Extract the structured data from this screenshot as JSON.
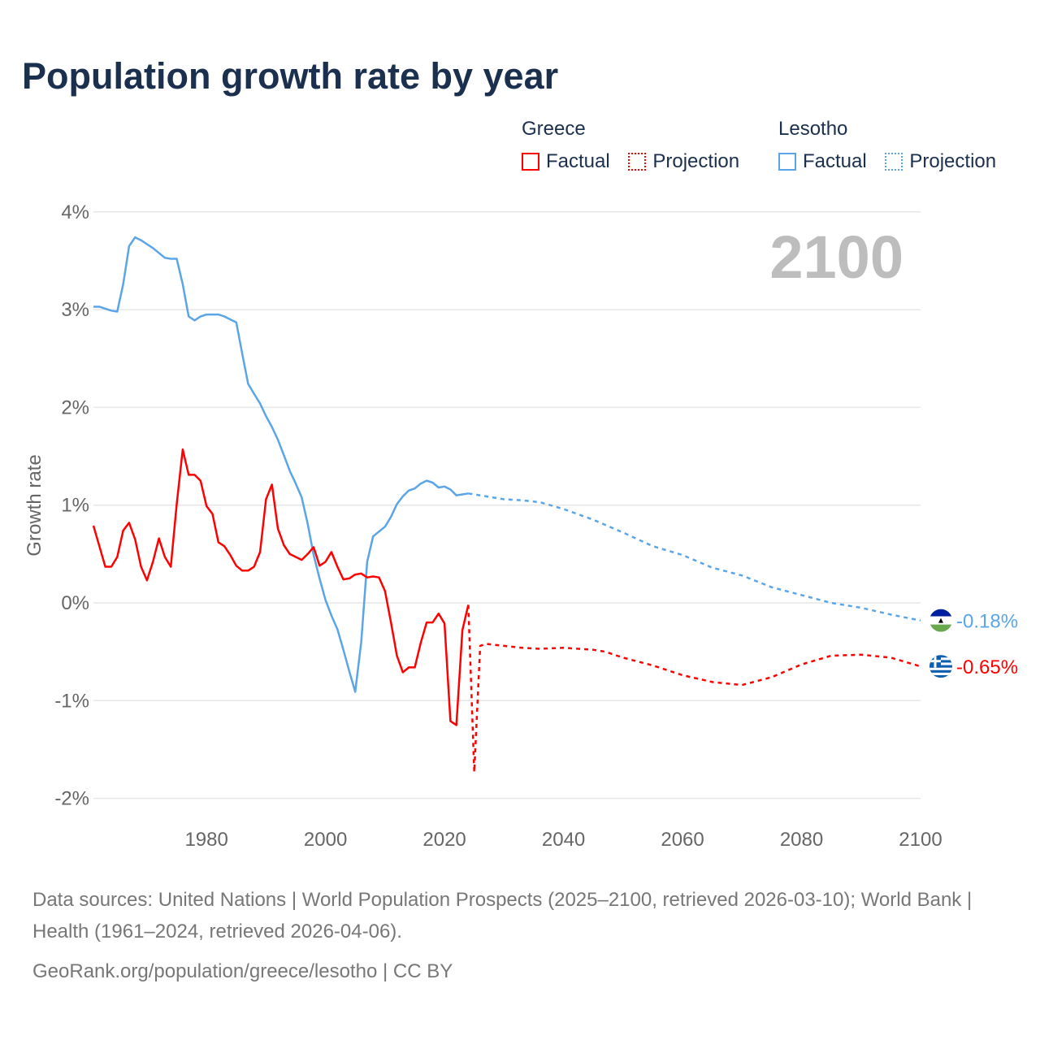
{
  "title": "Population growth rate by year",
  "legend": [
    {
      "name": "Greece",
      "color": "#ff0000",
      "factual_label": "Factual",
      "projection_label": "Projection"
    },
    {
      "name": "Lesotho",
      "color": "#5aa5e8",
      "factual_label": "Factual",
      "projection_label": "Projection"
    }
  ],
  "footer": {
    "sources": "Data sources: United Nations | World Population Prospects (2025–2100, retrieved 2026-03-10); World Bank | Health (1961–2024, retrieved 2026-04-06).",
    "credit": "GeoRank.org/population/greece/lesotho | CC BY"
  },
  "chart_data": {
    "type": "line",
    "title": "Population growth rate by year",
    "xlabel": "",
    "ylabel": "Growth rate",
    "xlim": [
      1961,
      2100
    ],
    "ylim": [
      -2.2,
      4.1
    ],
    "x_ticks": [
      1980,
      2000,
      2020,
      2040,
      2060,
      2080,
      2100
    ],
    "x_tick_labels": [
      "1980",
      "2000",
      "2020",
      "2040",
      "2060",
      "2080",
      "2100"
    ],
    "y_ticks": [
      4,
      3,
      2,
      1,
      0,
      -1,
      -2
    ],
    "y_tick_labels": [
      "4%",
      "3%",
      "2%",
      "1%",
      "0%",
      "-1%",
      "-2%"
    ],
    "grid": true,
    "legend_position": "top-right",
    "year_annotation": "2100",
    "end_labels": {
      "Lesotho": "-0.18%",
      "Greece": "-0.65%"
    },
    "series": [
      {
        "name": "Lesotho",
        "kind": "Factual",
        "color": "#5aa5e8",
        "x": [
          1961,
          1962,
          1963,
          1964,
          1965,
          1966,
          1967,
          1968,
          1969,
          1970,
          1971,
          1972,
          1973,
          1974,
          1975,
          1976,
          1977,
          1978,
          1979,
          1980,
          1981,
          1982,
          1983,
          1984,
          1985,
          1986,
          1987,
          1988,
          1989,
          1990,
          1991,
          1992,
          1993,
          1994,
          1995,
          1996,
          1997,
          1998,
          1999,
          2000,
          2001,
          2002,
          2003,
          2004,
          2005,
          2006,
          2007,
          2008,
          2009,
          2010,
          2011,
          2012,
          2013,
          2014,
          2015,
          2016,
          2017,
          2018,
          2019,
          2020,
          2021,
          2022,
          2023,
          2024
        ],
        "y": [
          3.03,
          3.03,
          3.01,
          2.99,
          2.98,
          3.26,
          3.65,
          3.74,
          3.71,
          3.67,
          3.63,
          3.58,
          3.53,
          3.52,
          3.52,
          3.26,
          2.93,
          2.89,
          2.93,
          2.95,
          2.95,
          2.95,
          2.93,
          2.9,
          2.87,
          2.55,
          2.24,
          2.14,
          2.04,
          1.91,
          1.8,
          1.67,
          1.51,
          1.35,
          1.22,
          1.08,
          0.81,
          0.49,
          0.25,
          0.03,
          -0.13,
          -0.27,
          -0.48,
          -0.7,
          -0.91,
          -0.4,
          0.42,
          0.68,
          0.73,
          0.78,
          0.88,
          1.01,
          1.09,
          1.15,
          1.17,
          1.22,
          1.25,
          1.23,
          1.18,
          1.19,
          1.16,
          1.1,
          1.11,
          1.12
        ]
      },
      {
        "name": "Lesotho",
        "kind": "Projection",
        "color": "#5aa5e8",
        "x": [
          2024,
          2027,
          2030,
          2033,
          2036,
          2040,
          2045,
          2050,
          2055,
          2060,
          2065,
          2070,
          2075,
          2080,
          2085,
          2090,
          2095,
          2100
        ],
        "y": [
          1.12,
          1.09,
          1.06,
          1.05,
          1.03,
          0.96,
          0.85,
          0.72,
          0.58,
          0.49,
          0.36,
          0.28,
          0.16,
          0.08,
          0.0,
          -0.05,
          -0.12,
          -0.18
        ]
      },
      {
        "name": "Greece",
        "kind": "Factual",
        "color": "#ff0000",
        "x": [
          1961,
          1962,
          1963,
          1964,
          1965,
          1966,
          1967,
          1968,
          1969,
          1970,
          1971,
          1972,
          1973,
          1974,
          1975,
          1976,
          1977,
          1978,
          1979,
          1980,
          1981,
          1982,
          1983,
          1984,
          1985,
          1986,
          1987,
          1988,
          1989,
          1990,
          1991,
          1992,
          1993,
          1994,
          1995,
          1996,
          1997,
          1998,
          1999,
          2000,
          2001,
          2002,
          2003,
          2004,
          2005,
          2006,
          2007,
          2008,
          2009,
          2010,
          2011,
          2012,
          2013,
          2014,
          2015,
          2016,
          2017,
          2018,
          2019,
          2020,
          2021,
          2022,
          2023,
          2024
        ],
        "y": [
          0.79,
          0.58,
          0.37,
          0.37,
          0.47,
          0.74,
          0.82,
          0.65,
          0.37,
          0.23,
          0.42,
          0.66,
          0.47,
          0.37,
          1.01,
          1.57,
          1.31,
          1.31,
          1.25,
          0.99,
          0.91,
          0.62,
          0.58,
          0.49,
          0.38,
          0.33,
          0.33,
          0.37,
          0.52,
          1.06,
          1.21,
          0.76,
          0.59,
          0.5,
          0.47,
          0.44,
          0.5,
          0.57,
          0.38,
          0.42,
          0.52,
          0.37,
          0.24,
          0.25,
          0.29,
          0.3,
          0.26,
          0.27,
          0.26,
          0.12,
          -0.2,
          -0.54,
          -0.71,
          -0.66,
          -0.66,
          -0.41,
          -0.2,
          -0.2,
          -0.11,
          -0.21,
          -1.21,
          -1.25,
          -0.28,
          -0.02
        ]
      },
      {
        "name": "Greece",
        "kind": "Projection",
        "color": "#ff0000",
        "x": [
          2024,
          2025,
          2026,
          2027,
          2030,
          2033,
          2036,
          2040,
          2045,
          2047,
          2050,
          2055,
          2060,
          2065,
          2070,
          2075,
          2080,
          2085,
          2090,
          2095,
          2100
        ],
        "y": [
          -0.02,
          -1.73,
          -0.44,
          -0.42,
          -0.44,
          -0.46,
          -0.47,
          -0.46,
          -0.48,
          -0.5,
          -0.56,
          -0.64,
          -0.74,
          -0.81,
          -0.84,
          -0.76,
          -0.63,
          -0.54,
          -0.53,
          -0.56,
          -0.65
        ]
      }
    ]
  }
}
